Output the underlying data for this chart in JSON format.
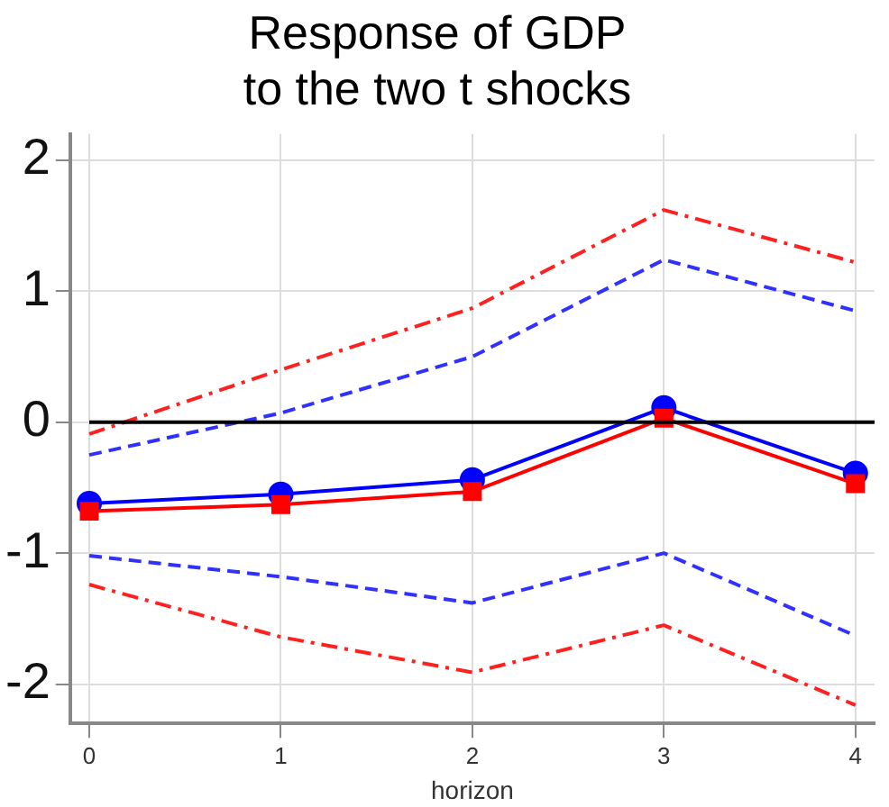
{
  "chart_data": {
    "type": "line",
    "title": "Response of GDP\nto the two t shocks",
    "xlabel": "horizon",
    "x": [
      0,
      1,
      2,
      3,
      4
    ],
    "xlim": [
      -0.1,
      4.1
    ],
    "xticks": [
      0,
      1,
      2,
      3,
      4
    ],
    "ylim": [
      -2.3,
      2.2
    ],
    "yticks": [
      -2,
      -1,
      0,
      1,
      2
    ],
    "grid": true,
    "legend": false,
    "series": [
      {
        "color": "#ff2020",
        "values": [
          -0.09,
          0.4,
          0.87,
          1.62,
          1.22
        ],
        "marker": "none",
        "line_style": "dashdot"
      },
      {
        "color": "#3030ff",
        "values": [
          -0.25,
          0.07,
          0.5,
          1.24,
          0.85
        ],
        "marker": "none",
        "line_style": "dashed"
      },
      {
        "color": "#0000ff",
        "values": [
          -0.62,
          -0.55,
          -0.44,
          0.11,
          -0.39
        ],
        "marker": "circle",
        "line_style": "solid"
      },
      {
        "color": "#ff0000",
        "values": [
          -0.68,
          -0.63,
          -0.53,
          0.03,
          -0.47
        ],
        "marker": "square",
        "line_style": "solid"
      },
      {
        "color": "#3030ff",
        "values": [
          -1.02,
          -1.18,
          -1.38,
          -1.0,
          -1.63
        ],
        "marker": "none",
        "line_style": "dashed"
      },
      {
        "color": "#ff2020",
        "values": [
          -1.24,
          -1.64,
          -1.91,
          -1.55,
          -2.16
        ],
        "marker": "none",
        "line_style": "dashdot"
      }
    ],
    "ref_lines": [
      {
        "axis": "y",
        "value": 0,
        "color": "#000000",
        "line_style": "solid"
      }
    ]
  }
}
